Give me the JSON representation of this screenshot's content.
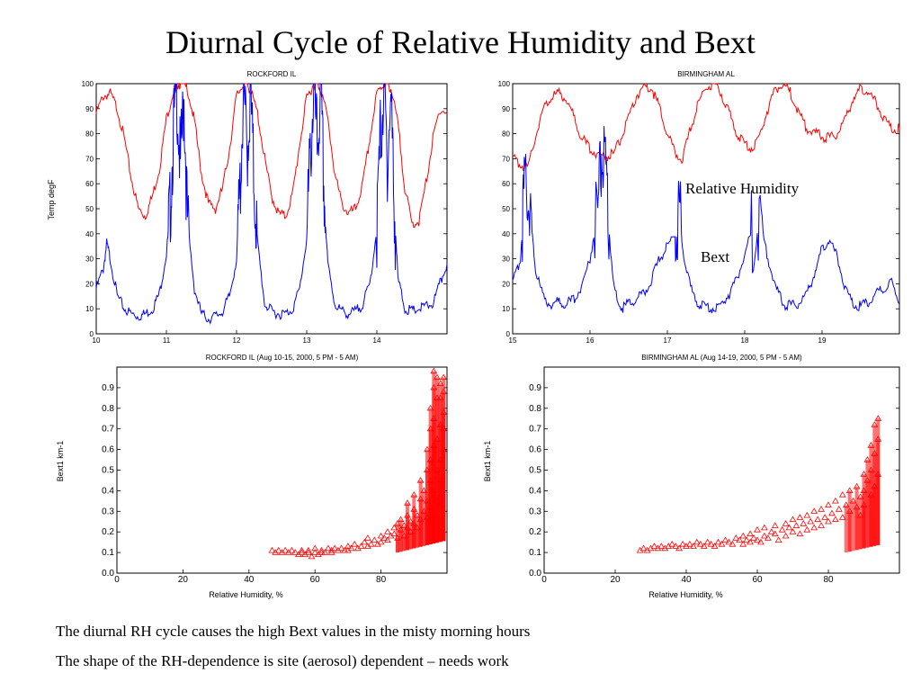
{
  "title": "Diurnal Cycle of Relative Humidity and Bext",
  "bullets": [
    "The diurnal RH cycle causes the high Bext values in the misty morning hours",
    "The shape of the RH-dependence is site (aerosol) dependent – needs work"
  ],
  "colors": {
    "rh": "#ff0000",
    "bext": "#0000ff",
    "scatter": "#ff0000"
  },
  "chart_data": [
    {
      "type": "line",
      "title": "ROCKFORD IL",
      "xlabel": "",
      "ylabel": "Temp degF",
      "xlim": [
        10,
        15
      ],
      "ylim": [
        0,
        100
      ],
      "xticks": [
        10,
        11,
        12,
        13,
        14
      ],
      "yticks": [
        0,
        10,
        20,
        30,
        40,
        50,
        60,
        70,
        80,
        90,
        100
      ],
      "series": [
        {
          "x": [
            10.0,
            10.1,
            10.2,
            10.3,
            10.4,
            10.5,
            10.6,
            10.7,
            10.8,
            10.9,
            11.0,
            11.1,
            11.15,
            11.2,
            11.3,
            11.4,
            11.5,
            11.6,
            11.7,
            11.8,
            11.9,
            12.0,
            12.1,
            12.15,
            12.2,
            12.3,
            12.4,
            12.5,
            12.6,
            12.7,
            12.8,
            12.9,
            13.0,
            13.1,
            13.15,
            13.2,
            13.3,
            13.4,
            13.5,
            13.6,
            13.7,
            13.8,
            13.9,
            14.0,
            14.1,
            14.15,
            14.2,
            14.3,
            14.4,
            14.5,
            14.6,
            14.7,
            14.8,
            14.9,
            15.0
          ],
          "y": [
            88,
            95,
            96,
            90,
            78,
            62,
            50,
            47,
            55,
            66,
            86,
            97,
            100,
            100,
            98,
            85,
            64,
            52,
            50,
            58,
            74,
            95,
            100,
            100,
            97,
            88,
            70,
            55,
            48,
            47,
            56,
            76,
            94,
            100,
            100,
            98,
            86,
            64,
            52,
            48,
            50,
            60,
            78,
            96,
            100,
            100,
            98,
            84,
            58,
            44,
            45,
            60,
            78,
            90,
            88
          ]
        },
        {
          "x": [
            10.0,
            10.1,
            10.15,
            10.2,
            10.3,
            10.4,
            10.5,
            10.6,
            10.7,
            10.8,
            10.9,
            11.0,
            11.05,
            11.1,
            11.15,
            11.2,
            11.25,
            11.3,
            11.4,
            11.5,
            11.6,
            11.7,
            11.8,
            11.9,
            12.0,
            12.05,
            12.1,
            12.15,
            12.2,
            12.25,
            12.3,
            12.4,
            12.5,
            12.6,
            12.7,
            12.8,
            12.9,
            13.0,
            13.05,
            13.1,
            13.15,
            13.2,
            13.25,
            13.3,
            13.4,
            13.5,
            13.6,
            13.7,
            13.8,
            13.9,
            14.0,
            14.05,
            14.1,
            14.15,
            14.2,
            14.25,
            14.3,
            14.4,
            14.5,
            14.6,
            14.7,
            14.8,
            14.9,
            15.0
          ],
          "y": [
            18,
            26,
            36,
            30,
            15,
            10,
            8,
            7,
            8,
            10,
            16,
            32,
            48,
            80,
            97,
            65,
            95,
            44,
            18,
            8,
            6,
            7,
            9,
            15,
            30,
            58,
            97,
            72,
            95,
            60,
            36,
            12,
            9,
            8,
            8,
            10,
            18,
            38,
            70,
            97,
            75,
            96,
            55,
            28,
            12,
            9,
            8,
            9,
            12,
            20,
            42,
            78,
            97,
            70,
            94,
            50,
            22,
            10,
            9,
            10,
            11,
            12,
            20,
            28
          ]
        }
      ]
    },
    {
      "type": "line",
      "title": "BIRMINGHAM AL",
      "xlabel": "",
      "ylabel": "",
      "xlim": [
        15,
        20
      ],
      "ylim": [
        0,
        100
      ],
      "xticks": [
        15,
        16,
        17,
        18,
        19
      ],
      "yticks": [
        0,
        10,
        20,
        30,
        40,
        50,
        60,
        70,
        80,
        90,
        100
      ],
      "annotations": [
        "Relative Humidity",
        "Bext"
      ],
      "series": [
        {
          "x": [
            15.0,
            15.1,
            15.2,
            15.3,
            15.4,
            15.5,
            15.6,
            15.7,
            15.8,
            15.9,
            16.0,
            16.1,
            16.2,
            16.3,
            16.4,
            16.5,
            16.6,
            16.7,
            16.8,
            16.9,
            17.0,
            17.1,
            17.2,
            17.3,
            17.4,
            17.5,
            17.6,
            17.7,
            17.8,
            17.9,
            18.0,
            18.1,
            18.2,
            18.3,
            18.4,
            18.5,
            18.6,
            18.7,
            18.8,
            18.9,
            19.0,
            19.1,
            19.2,
            19.3,
            19.4,
            19.5,
            19.6,
            19.7,
            19.8,
            19.9,
            20.0
          ],
          "y": [
            70,
            68,
            66,
            80,
            90,
            95,
            96,
            94,
            86,
            78,
            74,
            72,
            71,
            72,
            78,
            86,
            95,
            99,
            98,
            90,
            80,
            72,
            70,
            82,
            92,
            99,
            100,
            96,
            88,
            80,
            76,
            74,
            80,
            90,
            98,
            100,
            96,
            88,
            82,
            80,
            79,
            78,
            80,
            86,
            94,
            98,
            97,
            92,
            86,
            82,
            82
          ]
        },
        {
          "x": [
            15.0,
            15.1,
            15.15,
            15.2,
            15.25,
            15.3,
            15.4,
            15.5,
            15.6,
            15.7,
            15.8,
            15.9,
            16.0,
            16.1,
            16.15,
            16.2,
            16.25,
            16.3,
            16.4,
            16.5,
            16.6,
            16.7,
            16.8,
            16.9,
            17.0,
            17.1,
            17.15,
            17.2,
            17.3,
            17.4,
            17.5,
            17.6,
            17.7,
            17.8,
            17.9,
            18.0,
            18.1,
            18.2,
            18.3,
            18.4,
            18.5,
            18.6,
            18.7,
            18.8,
            18.9,
            19.0,
            19.1,
            19.2,
            19.3,
            19.4,
            19.5,
            19.6,
            19.7,
            19.8,
            19.9,
            20.0
          ],
          "y": [
            20,
            30,
            55,
            60,
            40,
            25,
            14,
            12,
            13,
            12,
            14,
            20,
            30,
            50,
            72,
            62,
            40,
            20,
            10,
            12,
            14,
            16,
            22,
            30,
            35,
            40,
            50,
            34,
            18,
            12,
            11,
            10,
            12,
            16,
            22,
            32,
            42,
            44,
            30,
            18,
            12,
            11,
            12,
            16,
            24,
            34,
            38,
            30,
            18,
            12,
            11,
            13,
            16,
            18,
            21,
            12
          ]
        }
      ]
    },
    {
      "type": "scatter",
      "title": "ROCKFORD IL (Aug 10-15, 2000, 5 PM - 5 AM)",
      "xlabel": "Relative Humidity, %",
      "ylabel": "Bext1 km-1",
      "xlim": [
        0,
        100
      ],
      "ylim": [
        0,
        1.0
      ],
      "xticks": [
        0,
        20,
        40,
        60,
        80
      ],
      "yticks": [
        0.0,
        0.1,
        0.2,
        0.3,
        0.4,
        0.5,
        0.6,
        0.7,
        0.8,
        0.9
      ],
      "marker": "triangle",
      "x": [
        47,
        48,
        49,
        50,
        51,
        52,
        53,
        54,
        55,
        56,
        56,
        57,
        58,
        58,
        59,
        60,
        60,
        61,
        62,
        62,
        63,
        64,
        65,
        65,
        66,
        67,
        68,
        69,
        70,
        70,
        71,
        72,
        73,
        74,
        75,
        76,
        76,
        77,
        78,
        79,
        80,
        80,
        81,
        82,
        82,
        83,
        84,
        84,
        85,
        85,
        86,
        86,
        87,
        87,
        88,
        88,
        88,
        89,
        89,
        90,
        90,
        90,
        91,
        91,
        92,
        92,
        92,
        93,
        93,
        94,
        94,
        94,
        94,
        95,
        95,
        95,
        95,
        95,
        96,
        96,
        96,
        96,
        96,
        96,
        97,
        97,
        97,
        97,
        97,
        98,
        98,
        98,
        98,
        98,
        99,
        99,
        99,
        99,
        99
      ],
      "y": [
        0.11,
        0.1,
        0.11,
        0.1,
        0.11,
        0.1,
        0.11,
        0.1,
        0.09,
        0.11,
        0.1,
        0.09,
        0.11,
        0.1,
        0.08,
        0.1,
        0.12,
        0.09,
        0.1,
        0.11,
        0.1,
        0.12,
        0.11,
        0.1,
        0.12,
        0.11,
        0.12,
        0.11,
        0.13,
        0.11,
        0.12,
        0.14,
        0.12,
        0.13,
        0.15,
        0.13,
        0.17,
        0.14,
        0.16,
        0.14,
        0.18,
        0.15,
        0.17,
        0.2,
        0.16,
        0.18,
        0.22,
        0.19,
        0.24,
        0.17,
        0.21,
        0.26,
        0.23,
        0.18,
        0.28,
        0.22,
        0.34,
        0.25,
        0.2,
        0.31,
        0.24,
        0.38,
        0.28,
        0.22,
        0.36,
        0.26,
        0.45,
        0.3,
        0.4,
        0.35,
        0.5,
        0.27,
        0.6,
        0.45,
        0.7,
        0.32,
        0.8,
        0.55,
        0.4,
        0.62,
        0.75,
        0.9,
        0.98,
        0.28,
        0.5,
        0.65,
        0.85,
        0.95,
        0.35,
        0.55,
        0.72,
        0.92,
        0.45,
        0.85,
        0.6,
        0.78,
        0.95,
        0.88,
        0.7
      ]
    },
    {
      "type": "scatter",
      "title": "BIRMINGHAM AL (Aug 14-19, 2000, 5 PM - 5 AM)",
      "xlabel": "Relative Humidity, %",
      "ylabel": "Bext1 km-1",
      "xlim": [
        0,
        100
      ],
      "ylim": [
        0,
        1.0
      ],
      "xticks": [
        0,
        20,
        40,
        60,
        80
      ],
      "yticks": [
        0.0,
        0.1,
        0.2,
        0.3,
        0.4,
        0.5,
        0.6,
        0.7,
        0.8,
        0.9
      ],
      "marker": "triangle",
      "x": [
        27,
        28,
        29,
        30,
        31,
        32,
        33,
        34,
        35,
        36,
        37,
        38,
        39,
        40,
        41,
        42,
        43,
        44,
        45,
        46,
        47,
        48,
        49,
        50,
        51,
        52,
        53,
        54,
        55,
        56,
        56,
        57,
        58,
        58,
        59,
        60,
        60,
        61,
        62,
        62,
        63,
        64,
        65,
        65,
        66,
        67,
        68,
        68,
        69,
        70,
        70,
        71,
        72,
        72,
        73,
        74,
        74,
        75,
        76,
        76,
        77,
        78,
        78,
        79,
        80,
        80,
        81,
        82,
        82,
        83,
        84,
        84,
        85,
        86,
        86,
        87,
        88,
        88,
        89,
        89,
        90,
        90,
        90,
        91,
        91,
        92,
        92,
        92,
        93,
        93,
        93,
        94,
        94,
        94
      ],
      "y": [
        0.11,
        0.12,
        0.11,
        0.12,
        0.13,
        0.12,
        0.13,
        0.12,
        0.13,
        0.14,
        0.13,
        0.12,
        0.14,
        0.13,
        0.14,
        0.13,
        0.15,
        0.14,
        0.13,
        0.15,
        0.14,
        0.13,
        0.15,
        0.14,
        0.16,
        0.15,
        0.14,
        0.17,
        0.16,
        0.14,
        0.18,
        0.16,
        0.15,
        0.19,
        0.17,
        0.16,
        0.21,
        0.15,
        0.18,
        0.22,
        0.17,
        0.2,
        0.19,
        0.23,
        0.16,
        0.21,
        0.24,
        0.18,
        0.22,
        0.2,
        0.26,
        0.23,
        0.19,
        0.27,
        0.24,
        0.21,
        0.28,
        0.25,
        0.22,
        0.3,
        0.26,
        0.23,
        0.31,
        0.27,
        0.25,
        0.33,
        0.29,
        0.26,
        0.35,
        0.31,
        0.27,
        0.38,
        0.33,
        0.3,
        0.4,
        0.35,
        0.32,
        0.42,
        0.37,
        0.28,
        0.4,
        0.48,
        0.33,
        0.45,
        0.55,
        0.38,
        0.5,
        0.62,
        0.42,
        0.58,
        0.72,
        0.48,
        0.65,
        0.75
      ]
    }
  ]
}
